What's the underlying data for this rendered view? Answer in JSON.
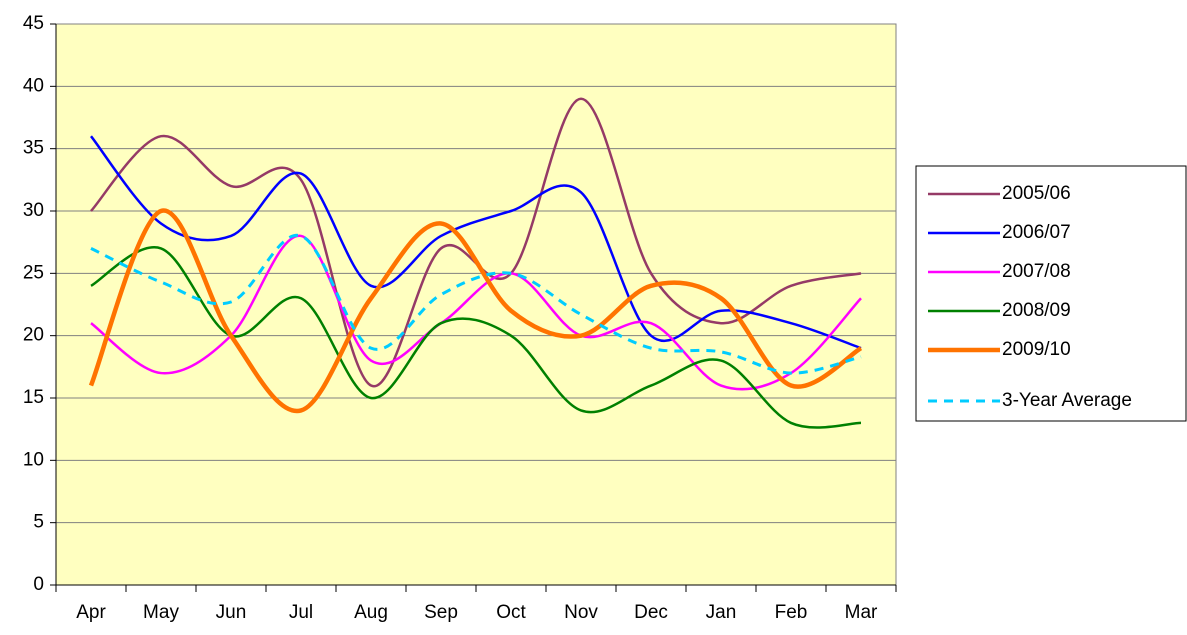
{
  "chart_data": {
    "type": "line",
    "categories": [
      "Apr",
      "May",
      "Jun",
      "Jul",
      "Aug",
      "Sep",
      "Oct",
      "Nov",
      "Dec",
      "Jan",
      "Feb",
      "Mar"
    ],
    "series": [
      {
        "name": "2005/06",
        "color": "#953a66",
        "values": [
          30,
          36,
          32,
          32.5,
          16,
          27,
          25,
          39,
          25,
          21,
          24,
          25
        ]
      },
      {
        "name": "2006/07",
        "color": "#0000ff",
        "values": [
          36,
          29,
          28,
          33,
          24,
          28,
          30,
          31.5,
          20,
          22,
          21,
          19
        ]
      },
      {
        "name": "2007/08",
        "color": "#ff00ff",
        "values": [
          21,
          17,
          20,
          28,
          18,
          21,
          25,
          20,
          21,
          16,
          17,
          23
        ]
      },
      {
        "name": "2008/09",
        "color": "#008000",
        "values": [
          24,
          27,
          20,
          23,
          15,
          21,
          20,
          14,
          16,
          18,
          13,
          13
        ]
      },
      {
        "name": "2009/10",
        "color": "#ff7300",
        "emphasis": true,
        "values": [
          16,
          30,
          20,
          14,
          23,
          29,
          22,
          20,
          24,
          23,
          16,
          19
        ]
      },
      {
        "name": "3-Year Average",
        "color": "#00ccff",
        "dashed": true,
        "values": [
          27,
          24.3,
          22.7,
          28,
          19,
          23.3,
          25,
          21.7,
          19,
          18.7,
          17,
          18.3
        ]
      }
    ],
    "ylim": [
      0,
      45
    ],
    "yticks": [
      0,
      5,
      10,
      15,
      20,
      25,
      30,
      35,
      40,
      45
    ],
    "grid": true,
    "legend": "right"
  }
}
